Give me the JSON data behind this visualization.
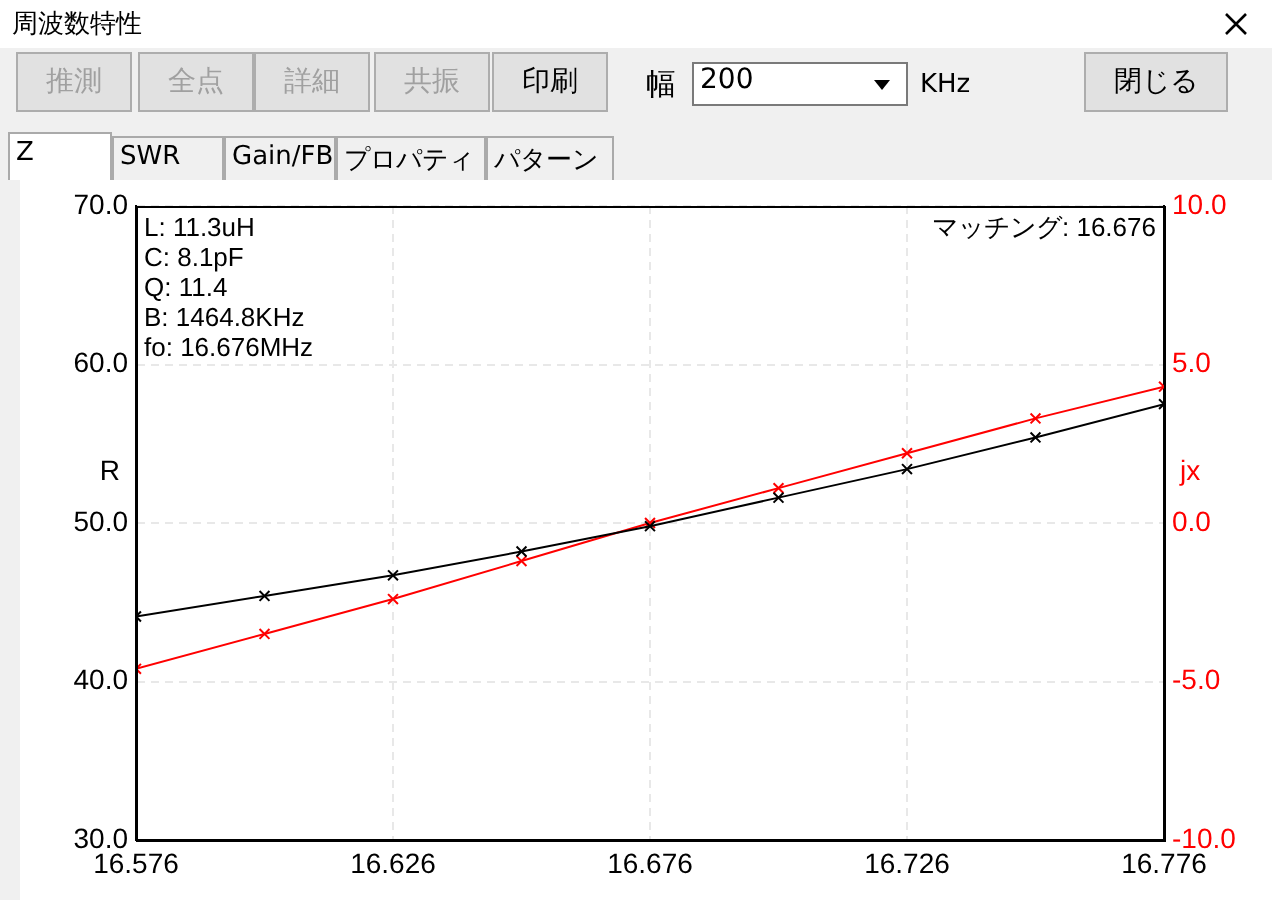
{
  "chart_data": {
    "type": "line",
    "title": "周波数特性",
    "ylabel": "R",
    "y2label": "jx",
    "x": [
      16.576,
      16.601,
      16.626,
      16.651,
      16.676,
      16.701,
      16.726,
      16.751,
      16.776
    ],
    "series": [
      {
        "color": "#000000",
        "values": [
          44.1,
          45.4,
          46.7,
          48.2,
          49.8,
          51.6,
          53.4,
          55.4,
          57.5
        ]
      },
      {
        "color": "#ff0000",
        "axis": "y2",
        "values": [
          -4.6,
          -3.5,
          -2.4,
          -1.2,
          0.0,
          1.1,
          2.2,
          3.3,
          4.3
        ]
      }
    ],
    "xlim": [
      16.576,
      16.776
    ],
    "xticks": [
      16.576,
      16.626,
      16.676,
      16.726,
      16.776
    ],
    "ylim": [
      30,
      70
    ],
    "yticks": [
      {
        "value": 30,
        "label": "30.0"
      },
      {
        "value": 40,
        "label": "40.0"
      },
      {
        "value": 50,
        "label": "50.0"
      },
      {
        "value": 60,
        "label": "60.0"
      },
      {
        "value": 70,
        "label": "70.0"
      }
    ],
    "y2lim": [
      -10,
      10
    ],
    "y2ticks": [
      {
        "value": -10,
        "label": "-10.0"
      },
      {
        "value": -5,
        "label": "-5.0"
      },
      {
        "value": 0,
        "label": "0.0"
      },
      {
        "value": 5,
        "label": "5.0"
      },
      {
        "value": 10,
        "label": "10.0"
      }
    ],
    "grid": true,
    "marker": "cross",
    "line_style": "solid",
    "annotations": [
      "L: 11.3uH",
      "C: 8.1pF",
      "Q: 11.4",
      "B: 1464.8KHz",
      "fo: 16.676MHz",
      "マッチング: 16.676",
      "推測",
      "全点",
      "詳細",
      "共振",
      "印刷",
      "幅",
      "200",
      "KHz",
      "閉じる",
      "Z",
      "SWR",
      "Gain/FB",
      "プロパティ",
      "パターン"
    ]
  }
}
